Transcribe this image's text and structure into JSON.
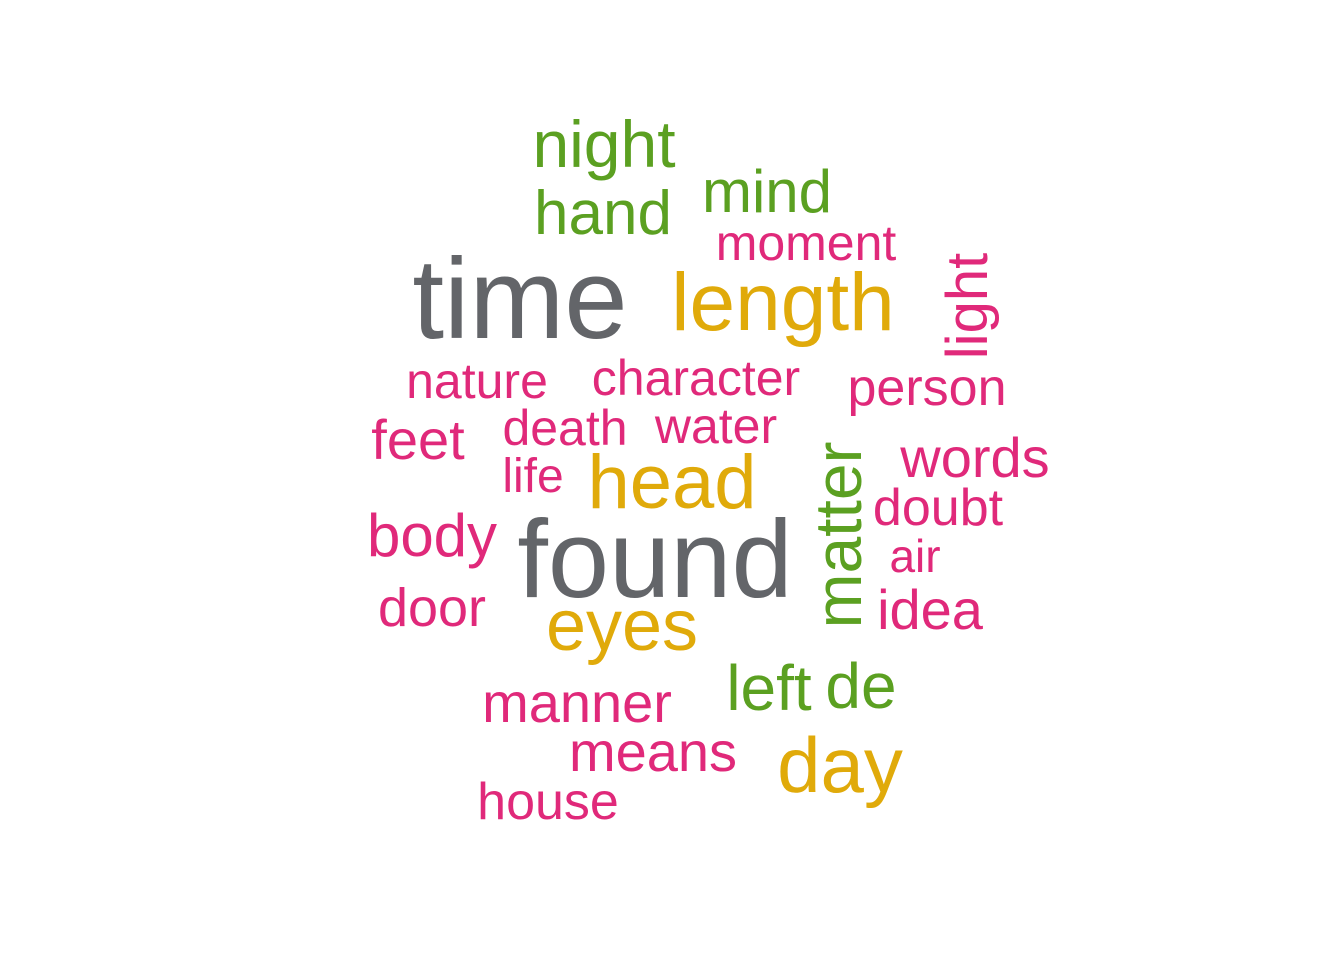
{
  "chart_data": {
    "type": "wordcloud",
    "words": [
      {
        "text": "time",
        "size_rank": 1,
        "color": "#636569"
      },
      {
        "text": "found",
        "size_rank": 2,
        "color": "#636569"
      },
      {
        "text": "length",
        "size_rank": 3,
        "color": "#e0aa0a"
      },
      {
        "text": "head",
        "size_rank": 4,
        "color": "#e0aa0a"
      },
      {
        "text": "day",
        "size_rank": 5,
        "color": "#e0aa0a"
      },
      {
        "text": "eyes",
        "size_rank": 6,
        "color": "#e0aa0a"
      },
      {
        "text": "matter",
        "size_rank": 7,
        "color": "#5ba021",
        "orientation": "vertical"
      },
      {
        "text": "night",
        "size_rank": 8,
        "color": "#5ba021"
      },
      {
        "text": "hand",
        "size_rank": 9,
        "color": "#5ba021"
      },
      {
        "text": "mind",
        "size_rank": 10,
        "color": "#5ba021"
      },
      {
        "text": "left",
        "size_rank": 11,
        "color": "#5ba021"
      },
      {
        "text": "de",
        "size_rank": 12,
        "color": "#5ba021"
      },
      {
        "text": "light",
        "size_rank": 13,
        "color": "#e0297a",
        "orientation": "vertical"
      },
      {
        "text": "body",
        "size_rank": 14,
        "color": "#e0297a"
      },
      {
        "text": "feet",
        "size_rank": 15,
        "color": "#e0297a"
      },
      {
        "text": "words",
        "size_rank": 16,
        "color": "#e0297a"
      },
      {
        "text": "idea",
        "size_rank": 17,
        "color": "#e0297a"
      },
      {
        "text": "manner",
        "size_rank": 18,
        "color": "#e0297a"
      },
      {
        "text": "means",
        "size_rank": 19,
        "color": "#e0297a"
      },
      {
        "text": "door",
        "size_rank": 20,
        "color": "#e0297a"
      },
      {
        "text": "person",
        "size_rank": 21,
        "color": "#e0297a"
      },
      {
        "text": "doubt",
        "size_rank": 22,
        "color": "#e0297a"
      },
      {
        "text": "house",
        "size_rank": 23,
        "color": "#e0297a"
      },
      {
        "text": "moment",
        "size_rank": 24,
        "color": "#e0297a"
      },
      {
        "text": "nature",
        "size_rank": 25,
        "color": "#e0297a"
      },
      {
        "text": "character",
        "size_rank": 26,
        "color": "#e0297a"
      },
      {
        "text": "death",
        "size_rank": 27,
        "color": "#e0297a"
      },
      {
        "text": "water",
        "size_rank": 28,
        "color": "#e0297a"
      },
      {
        "text": "life",
        "size_rank": 29,
        "color": "#e0297a"
      },
      {
        "text": "air",
        "size_rank": 30,
        "color": "#e0297a"
      }
    ],
    "palette": [
      "#636569",
      "#e0aa0a",
      "#5ba021",
      "#e0297a"
    ]
  }
}
